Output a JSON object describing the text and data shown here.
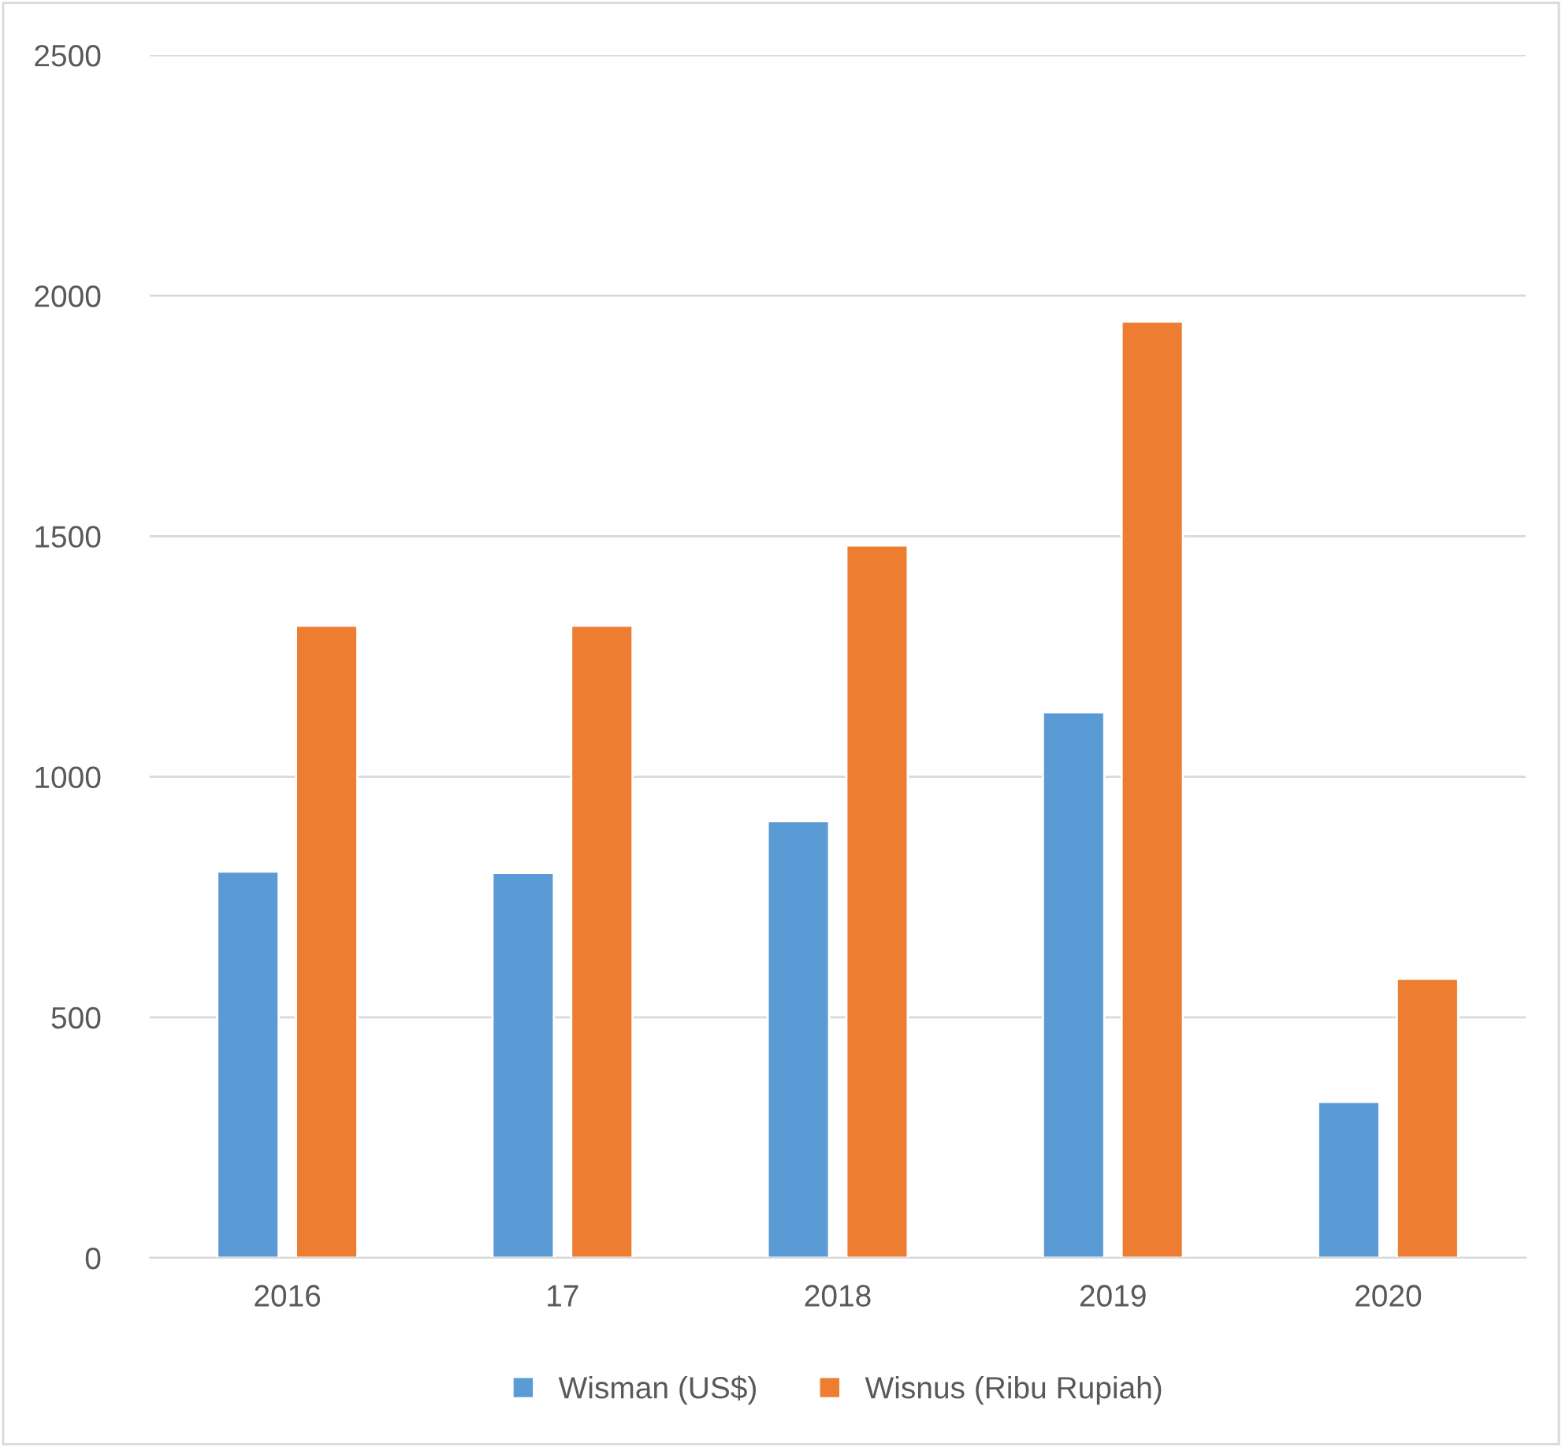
{
  "chart_data": {
    "type": "bar",
    "categories": [
      "2016",
      "17",
      "2018",
      "2019",
      "2020"
    ],
    "series": [
      {
        "name": "Wisman (US$)",
        "color": "#5b9bd5",
        "values": [
          803,
          800,
          908,
          1134,
          324
        ]
      },
      {
        "name": "Wisnus (Ribu Rupiah)",
        "color": "#ed7d31",
        "values": [
          1314,
          1314,
          1481,
          1946,
          580
        ]
      }
    ],
    "ylim": [
      0,
      2500
    ],
    "yticks": [
      0,
      500,
      1000,
      1500,
      2000,
      2500
    ],
    "grid": "y",
    "legend": "bottom"
  }
}
